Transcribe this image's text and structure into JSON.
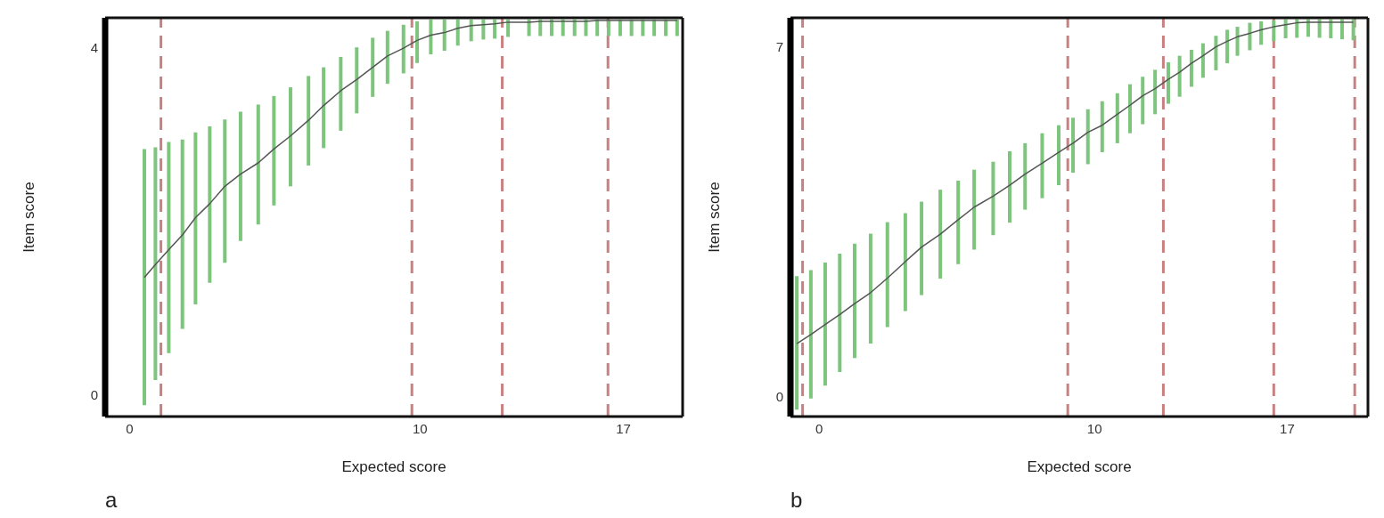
{
  "chart_data": [
    {
      "type": "line",
      "xlabel": "Expected score",
      "ylabel": "Item score",
      "annotations": [
        "a"
      ],
      "xlim": [
        -0.84,
        19.04
      ],
      "ylim": [
        -0.25,
        4.34
      ],
      "xticks": [
        0,
        10,
        17
      ],
      "yticks": [
        0,
        4
      ],
      "marker": "none",
      "line_style": "solid",
      "ref_lines": [
        {
          "axis": "x",
          "value": 1.08,
          "color": "#c98080",
          "line_style": "dashed"
        },
        {
          "axis": "x",
          "value": 9.72,
          "color": "#c98080",
          "line_style": "dashed"
        },
        {
          "axis": "x",
          "value": 12.83,
          "color": "#c98080",
          "line_style": "dashed"
        },
        {
          "axis": "x",
          "value": 16.47,
          "color": "#c98080",
          "line_style": "dashed"
        }
      ],
      "series": [
        {
          "color": "#555555",
          "x": [
            0.51,
            0.89,
            1.35,
            1.82,
            2.27,
            2.76,
            3.28,
            3.82,
            4.43,
            4.97,
            5.54,
            6.16,
            6.68,
            7.27,
            7.82,
            8.37,
            8.88,
            9.43,
            9.9,
            10.37,
            10.84,
            11.3,
            11.76,
            12.18,
            12.57,
            13.03,
            13.75,
            14.14,
            14.53,
            14.92,
            15.32,
            15.71,
            16.1,
            16.49,
            16.89,
            17.28,
            17.67,
            18.06,
            18.46,
            18.85
          ],
          "values": [
            1.35,
            1.5,
            1.67,
            1.84,
            2.04,
            2.2,
            2.4,
            2.54,
            2.67,
            2.83,
            2.98,
            3.16,
            3.33,
            3.5,
            3.63,
            3.77,
            3.9,
            3.99,
            4.08,
            4.14,
            4.17,
            4.22,
            4.25,
            4.26,
            4.27,
            4.29,
            4.29,
            4.3,
            4.3,
            4.3,
            4.3,
            4.3,
            4.31,
            4.31,
            4.31,
            4.31,
            4.31,
            4.31,
            4.31,
            4.31
          ],
          "errors": [
            [
              -0.12,
              2.83
            ],
            [
              0.17,
              2.85
            ],
            [
              0.48,
              2.91
            ],
            [
              0.76,
              2.94
            ],
            [
              1.04,
              3.02
            ],
            [
              1.29,
              3.09
            ],
            [
              1.52,
              3.17
            ],
            [
              1.77,
              3.26
            ],
            [
              1.96,
              3.34
            ],
            [
              2.18,
              3.44
            ],
            [
              2.4,
              3.54
            ],
            [
              2.64,
              3.67
            ],
            [
              2.84,
              3.77
            ],
            [
              3.04,
              3.89
            ],
            [
              3.24,
              4.0
            ],
            [
              3.43,
              4.11
            ],
            [
              3.58,
              4.19
            ],
            [
              3.7,
              4.26
            ],
            [
              3.82,
              4.3
            ],
            [
              3.92,
              4.32
            ],
            [
              3.96,
              4.32
            ],
            [
              4.02,
              4.32
            ],
            [
              4.07,
              4.32
            ],
            [
              4.09,
              4.32
            ],
            [
              4.1,
              4.32
            ],
            [
              4.12,
              4.32
            ],
            [
              4.13,
              4.32
            ],
            [
              4.13,
              4.32
            ],
            [
              4.13,
              4.32
            ],
            [
              4.13,
              4.32
            ],
            [
              4.13,
              4.32
            ],
            [
              4.13,
              4.32
            ],
            [
              4.13,
              4.32
            ],
            [
              4.13,
              4.32
            ],
            [
              4.13,
              4.32
            ],
            [
              4.13,
              4.32
            ],
            [
              4.13,
              4.32
            ],
            [
              4.13,
              4.32
            ],
            [
              4.13,
              4.32
            ],
            [
              4.13,
              4.32
            ]
          ]
        }
      ]
    },
    {
      "type": "line",
      "xlabel": "Expected score",
      "ylabel": "Item score",
      "annotations": [
        "b"
      ],
      "xlim": [
        -1.04,
        19.93
      ],
      "ylim": [
        -0.4,
        7.58
      ],
      "xticks": [
        0,
        10,
        17
      ],
      "yticks": [
        0,
        7
      ],
      "marker": "none",
      "line_style": "solid",
      "ref_lines": [
        {
          "axis": "x",
          "value": -0.6,
          "color": "#c98080",
          "line_style": "dashed"
        },
        {
          "axis": "x",
          "value": 9.03,
          "color": "#c98080",
          "line_style": "dashed"
        },
        {
          "axis": "x",
          "value": 12.5,
          "color": "#c98080",
          "line_style": "dashed"
        },
        {
          "axis": "x",
          "value": 16.51,
          "color": "#c98080",
          "line_style": "dashed"
        },
        {
          "axis": "x",
          "value": 19.45,
          "color": "#c98080",
          "line_style": "dashed"
        }
      ],
      "series": [
        {
          "color": "#555555",
          "x": [
            -0.81,
            -0.3,
            0.22,
            0.75,
            1.29,
            1.87,
            2.48,
            3.13,
            3.72,
            4.4,
            5.05,
            5.63,
            6.32,
            6.92,
            7.48,
            8.1,
            8.7,
            9.22,
            9.76,
            10.28,
            10.83,
            11.29,
            11.75,
            12.2,
            12.68,
            13.09,
            13.52,
            13.94,
            14.41,
            14.82,
            15.19,
            15.64,
            16.05,
            16.51,
            16.94,
            17.35,
            17.76,
            18.17,
            18.58,
            18.99,
            19.4
          ],
          "values": [
            1.06,
            1.24,
            1.44,
            1.64,
            1.86,
            2.08,
            2.37,
            2.7,
            2.99,
            3.25,
            3.54,
            3.79,
            4.01,
            4.23,
            4.45,
            4.67,
            4.89,
            5.07,
            5.29,
            5.43,
            5.65,
            5.83,
            6.02,
            6.16,
            6.35,
            6.49,
            6.67,
            6.82,
            7.0,
            7.11,
            7.2,
            7.27,
            7.34,
            7.4,
            7.44,
            7.48,
            7.49,
            7.49,
            7.49,
            7.49,
            7.49
          ],
          "errors": [
            [
              -0.26,
              2.41
            ],
            [
              -0.04,
              2.53
            ],
            [
              0.22,
              2.68
            ],
            [
              0.49,
              2.86
            ],
            [
              0.77,
              3.06
            ],
            [
              1.06,
              3.26
            ],
            [
              1.39,
              3.49
            ],
            [
              1.71,
              3.67
            ],
            [
              2.03,
              3.9
            ],
            [
              2.36,
              4.14
            ],
            [
              2.65,
              4.32
            ],
            [
              2.94,
              4.54
            ],
            [
              3.23,
              4.7
            ],
            [
              3.48,
              4.91
            ],
            [
              3.74,
              5.07
            ],
            [
              3.97,
              5.27
            ],
            [
              4.23,
              5.43
            ],
            [
              4.48,
              5.58
            ],
            [
              4.65,
              5.75
            ],
            [
              4.89,
              5.91
            ],
            [
              5.07,
              6.07
            ],
            [
              5.27,
              6.25
            ],
            [
              5.45,
              6.4
            ],
            [
              5.65,
              6.54
            ],
            [
              5.86,
              6.69
            ],
            [
              6.0,
              6.82
            ],
            [
              6.2,
              6.94
            ],
            [
              6.38,
              7.07
            ],
            [
              6.53,
              7.22
            ],
            [
              6.67,
              7.34
            ],
            [
              6.82,
              7.4
            ],
            [
              6.93,
              7.48
            ],
            [
              7.04,
              7.51
            ],
            [
              7.11,
              7.53
            ],
            [
              7.17,
              7.55
            ],
            [
              7.18,
              7.55
            ],
            [
              7.2,
              7.55
            ],
            [
              7.18,
              7.55
            ],
            [
              7.17,
              7.55
            ],
            [
              7.15,
              7.55
            ],
            [
              7.13,
              7.55
            ]
          ]
        }
      ]
    }
  ]
}
